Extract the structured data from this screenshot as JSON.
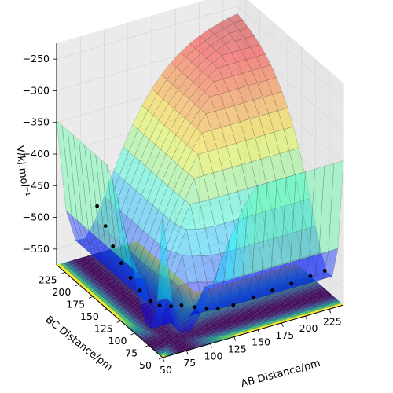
{
  "chart_data": {
    "type": "surface3d",
    "title": "",
    "xlabel": "AB Distance/pm",
    "ylabel": "BC Distance/pm",
    "zlabel": "V/kJ.mol⁻¹",
    "xlim": [
      50,
      240
    ],
    "ylim": [
      50,
      240
    ],
    "zlim": [
      -575,
      -225
    ],
    "x_ticks": [
      50,
      75,
      100,
      125,
      150,
      175,
      200,
      225
    ],
    "y_ticks": [
      50,
      75,
      100,
      125,
      150,
      175,
      200,
      225
    ],
    "z_ticks": [
      -550,
      -500,
      -450,
      -400,
      -350,
      -300,
      -250
    ],
    "colormap_surface": "jet",
    "colormap_contour": "viridis",
    "grid": true,
    "trajectory": {
      "color": "#000000",
      "points": [
        [
          75,
          210,
          -470
        ],
        [
          75,
          195,
          -490
        ],
        [
          74,
          180,
          -510
        ],
        [
          74,
          165,
          -525
        ],
        [
          75,
          150,
          -537
        ],
        [
          76,
          135,
          -546
        ],
        [
          78,
          120,
          -552
        ],
        [
          82,
          110,
          -553
        ],
        [
          88,
          100,
          -549
        ],
        [
          95,
          93,
          -545
        ],
        [
          105,
          86,
          -547
        ],
        [
          115,
          82,
          -551
        ],
        [
          125,
          79,
          -553
        ],
        [
          140,
          77,
          -552
        ],
        [
          160,
          75,
          -548
        ],
        [
          180,
          75,
          -545
        ],
        [
          200,
          75,
          -543
        ],
        [
          220,
          75,
          -540
        ],
        [
          235,
          75,
          -538
        ]
      ]
    }
  }
}
